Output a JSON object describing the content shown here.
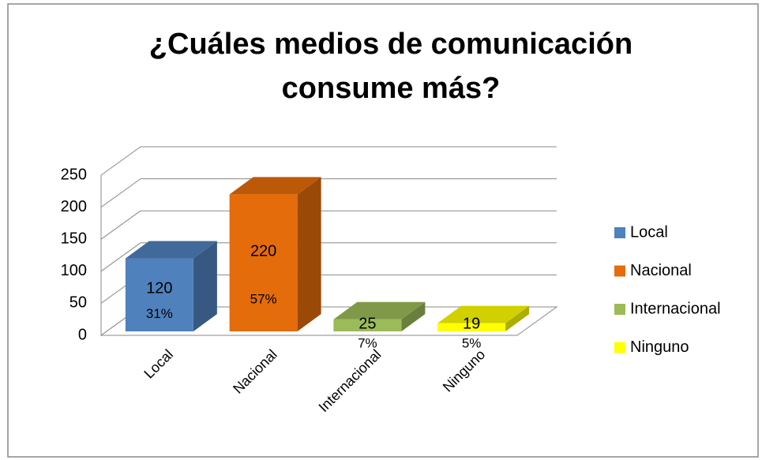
{
  "chart_data": {
    "type": "bar3d",
    "title": "¿Cuáles medios de comunicación consume más?",
    "categories": [
      "Local",
      "Nacional",
      "Internacional",
      "Ninguno"
    ],
    "values": [
      120,
      220,
      25,
      19
    ],
    "percent_labels": [
      "31%",
      "57%",
      "7%",
      "5%"
    ],
    "colors": [
      "#4f81bd",
      "#e46c0a",
      "#9bbb59",
      "#ffff00"
    ],
    "ylim": [
      0,
      250
    ],
    "yticks": [
      0,
      50,
      100,
      150,
      200,
      250
    ],
    "grid": true,
    "legend": "right"
  }
}
